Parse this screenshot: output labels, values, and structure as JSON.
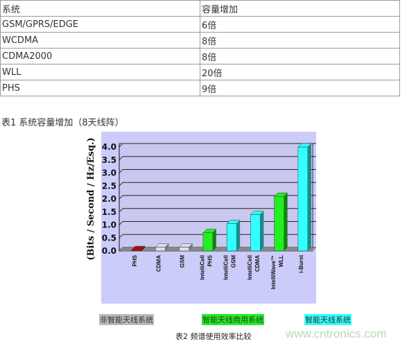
{
  "table1": {
    "headers": [
      "系统",
      "容量增加"
    ],
    "rows": [
      [
        "GSM/GPRS/EDGE",
        "6倍"
      ],
      [
        "WCDMA",
        "8倍"
      ],
      [
        "CDMA2000",
        "8倍"
      ],
      [
        "WLL",
        "20倍"
      ],
      [
        "PHS",
        "9倍"
      ]
    ],
    "caption": "表1 系统容量增加（8天线阵）"
  },
  "chart_data": {
    "type": "bar",
    "ylabel": "(Bits / Second / Hz/Esq.)",
    "ylim": [
      0,
      4.0
    ],
    "yticks": [
      "0.0",
      "0.5",
      "1.0",
      "1.5",
      "2.0",
      "2.5",
      "3.0",
      "3.5",
      "4.0"
    ],
    "grid": true,
    "categories": [
      "PHS",
      "CDMA",
      "GSM",
      "IntelliCell PHS",
      "IntelliCell GSM",
      "IntelliCell CDMA",
      "IntelliWave™ WLL",
      "i-Burst"
    ],
    "category_lines": [
      [
        "PHS"
      ],
      [
        "CDMA"
      ],
      [
        "GSM"
      ],
      [
        "IntelliCell",
        "PHS"
      ],
      [
        "IntelliCell",
        "GSM"
      ],
      [
        "IntelliCell",
        "CDMA"
      ],
      [
        "IntelliWave™",
        "WLL"
      ],
      [
        "i-Burst"
      ]
    ],
    "values": [
      0.05,
      0.15,
      0.15,
      0.7,
      1.05,
      1.4,
      2.1,
      4.0
    ],
    "bar_colors": [
      "#aa1111",
      "#ddddee",
      "#ddddee",
      "#22ee22",
      "#33ffff",
      "#33ffff",
      "#22ee22",
      "#33ffff"
    ],
    "legend": [
      {
        "label": "非智能天线系统",
        "color": "#bbbbbb"
      },
      {
        "label": "智能天线商用系统",
        "color": "#22ee22"
      },
      {
        "label": "智能天线系统",
        "color": "#33ffff"
      }
    ],
    "caption": "表2 频谱使用效率比较"
  },
  "watermark": "www.cntronics.com"
}
